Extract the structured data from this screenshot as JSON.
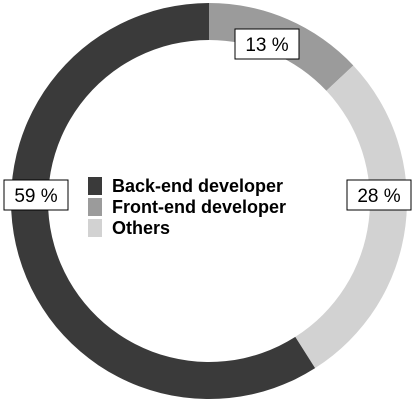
{
  "chart_data": {
    "type": "pie",
    "subtype": "donut",
    "title": "",
    "categories": [
      "Back-end developer",
      "Front-end developer",
      "Others"
    ],
    "values": [
      59,
      13,
      28
    ],
    "labels": [
      "59 %",
      "13 %",
      "28 %"
    ],
    "colors": [
      "#3a3a3a",
      "#9b9b9b",
      "#d2d2d2"
    ],
    "legend": {
      "placement": "center",
      "entries": [
        "Back-end developer",
        "Front-end developer",
        "Others"
      ]
    }
  }
}
